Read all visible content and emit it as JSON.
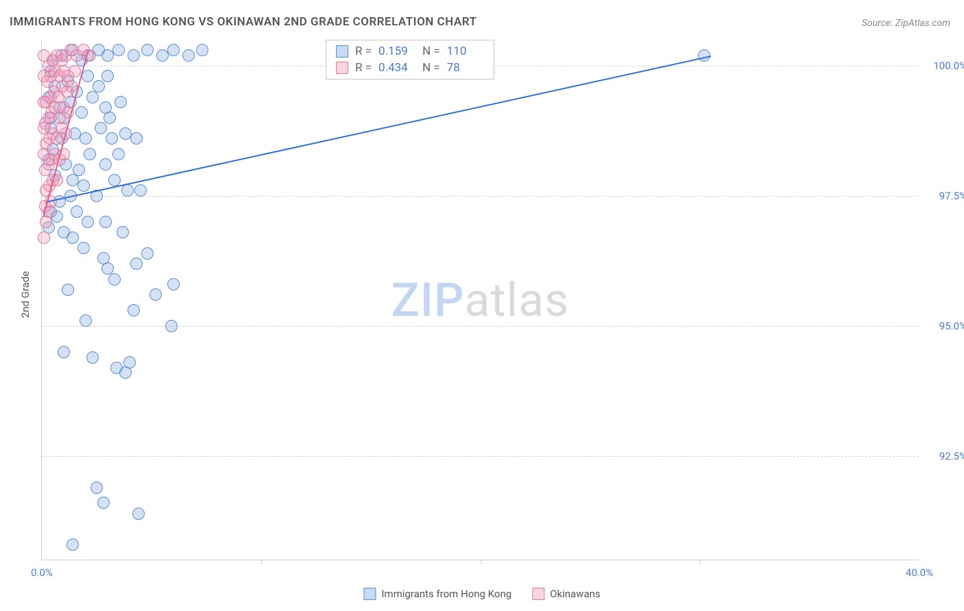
{
  "title": "IMMIGRANTS FROM HONG KONG VS OKINAWAN 2ND GRADE CORRELATION CHART",
  "source": "Source: ZipAtlas.com",
  "y_axis_label": "2nd Grade",
  "chart": {
    "type": "scatter",
    "xlim": [
      0,
      40
    ],
    "ylim": [
      90.5,
      100.5
    ],
    "xticks": [
      {
        "v": 0,
        "l": "0.0%"
      },
      {
        "v": 40,
        "l": "40.0%"
      }
    ],
    "xtick_marks": [
      10,
      20,
      30
    ],
    "yticks": [
      {
        "v": 92.5,
        "l": "92.5%"
      },
      {
        "v": 95.0,
        "l": "95.0%"
      },
      {
        "v": 97.5,
        "l": "97.5%"
      },
      {
        "v": 100.0,
        "l": "100.0%"
      }
    ],
    "series": [
      {
        "name": "Immigrants from Hong Kong",
        "color_class": "blue",
        "r": "0.159",
        "n": "110",
        "trend": {
          "x1": 0.2,
          "y1": 97.4,
          "x2": 30.5,
          "y2": 100.2
        },
        "points": [
          [
            2.5,
            91.9
          ],
          [
            2.8,
            91.6
          ],
          [
            4.4,
            91.4
          ],
          [
            1.4,
            90.8
          ],
          [
            3.4,
            94.2
          ],
          [
            4.0,
            94.3
          ],
          [
            3.8,
            94.1
          ],
          [
            2.3,
            94.4
          ],
          [
            1.0,
            94.5
          ],
          [
            5.9,
            95.0
          ],
          [
            5.2,
            95.6
          ],
          [
            4.2,
            95.3
          ],
          [
            6.0,
            95.8
          ],
          [
            3.0,
            96.1
          ],
          [
            3.3,
            95.9
          ],
          [
            2.0,
            95.1
          ],
          [
            1.2,
            95.7
          ],
          [
            4.3,
            96.2
          ],
          [
            4.8,
            96.4
          ],
          [
            2.8,
            96.3
          ],
          [
            1.0,
            96.8
          ],
          [
            1.4,
            96.7
          ],
          [
            2.1,
            97.0
          ],
          [
            2.9,
            97.0
          ],
          [
            3.7,
            96.8
          ],
          [
            0.8,
            97.4
          ],
          [
            1.3,
            97.5
          ],
          [
            1.9,
            97.7
          ],
          [
            2.5,
            97.5
          ],
          [
            3.3,
            97.8
          ],
          [
            3.9,
            97.6
          ],
          [
            4.5,
            97.6
          ],
          [
            0.6,
            97.9
          ],
          [
            1.1,
            98.1
          ],
          [
            1.7,
            98.0
          ],
          [
            2.2,
            98.3
          ],
          [
            2.9,
            98.1
          ],
          [
            3.5,
            98.3
          ],
          [
            0.5,
            98.4
          ],
          [
            0.9,
            98.6
          ],
          [
            1.5,
            98.7
          ],
          [
            2.0,
            98.6
          ],
          [
            2.7,
            98.8
          ],
          [
            3.2,
            98.6
          ],
          [
            3.8,
            98.7
          ],
          [
            4.3,
            98.6
          ],
          [
            0.4,
            99.0
          ],
          [
            0.8,
            99.2
          ],
          [
            1.0,
            99.0
          ],
          [
            1.3,
            99.3
          ],
          [
            1.8,
            99.1
          ],
          [
            2.3,
            99.4
          ],
          [
            2.9,
            99.2
          ],
          [
            3.1,
            99.0
          ],
          [
            3.6,
            99.3
          ],
          [
            0.6,
            99.6
          ],
          [
            1.2,
            99.7
          ],
          [
            1.6,
            99.5
          ],
          [
            2.1,
            99.8
          ],
          [
            2.6,
            99.6
          ],
          [
            3.0,
            99.8
          ],
          [
            0.5,
            100.1
          ],
          [
            0.9,
            100.2
          ],
          [
            1.4,
            100.3
          ],
          [
            1.8,
            100.1
          ],
          [
            2.1,
            100.2
          ],
          [
            2.6,
            100.3
          ],
          [
            3.0,
            100.2
          ],
          [
            3.5,
            100.3
          ],
          [
            4.2,
            100.2
          ],
          [
            4.8,
            100.3
          ],
          [
            5.5,
            100.2
          ],
          [
            6.0,
            100.3
          ],
          [
            6.7,
            100.2
          ],
          [
            7.3,
            100.3
          ],
          [
            30.2,
            100.2
          ],
          [
            0.3,
            96.9
          ],
          [
            0.4,
            97.2
          ],
          [
            0.3,
            98.2
          ],
          [
            0.4,
            98.8
          ],
          [
            0.3,
            99.4
          ],
          [
            0.4,
            99.9
          ],
          [
            0.7,
            97.1
          ],
          [
            1.6,
            97.2
          ],
          [
            1.4,
            97.8
          ],
          [
            1.9,
            96.5
          ]
        ]
      },
      {
        "name": "Okinawans",
        "color_class": "pink",
        "r": "0.434",
        "n": "78",
        "trend": {
          "x1": 0.05,
          "y1": 97.1,
          "x2": 2.1,
          "y2": 100.3
        },
        "points": [
          [
            0.1,
            96.7
          ],
          [
            0.2,
            97.0
          ],
          [
            0.3,
            97.2
          ],
          [
            0.15,
            97.3
          ],
          [
            0.4,
            97.4
          ],
          [
            0.2,
            97.6
          ],
          [
            0.35,
            97.7
          ],
          [
            0.5,
            97.8
          ],
          [
            0.7,
            97.8
          ],
          [
            0.15,
            98.0
          ],
          [
            0.3,
            98.1
          ],
          [
            0.45,
            98.2
          ],
          [
            0.6,
            98.3
          ],
          [
            0.8,
            98.2
          ],
          [
            1.0,
            98.3
          ],
          [
            0.2,
            98.5
          ],
          [
            0.35,
            98.6
          ],
          [
            0.5,
            98.7
          ],
          [
            0.7,
            98.6
          ],
          [
            0.9,
            98.8
          ],
          [
            1.1,
            98.7
          ],
          [
            0.15,
            98.9
          ],
          [
            0.3,
            99.0
          ],
          [
            0.45,
            99.1
          ],
          [
            0.6,
            99.2
          ],
          [
            0.8,
            99.0
          ],
          [
            1.0,
            99.2
          ],
          [
            1.2,
            99.1
          ],
          [
            0.2,
            99.3
          ],
          [
            0.4,
            99.4
          ],
          [
            0.55,
            99.5
          ],
          [
            0.75,
            99.4
          ],
          [
            0.95,
            99.6
          ],
          [
            1.15,
            99.5
          ],
          [
            1.35,
            99.6
          ],
          [
            0.25,
            99.7
          ],
          [
            0.4,
            99.8
          ],
          [
            0.6,
            99.9
          ],
          [
            0.8,
            99.8
          ],
          [
            1.0,
            99.9
          ],
          [
            1.2,
            99.8
          ],
          [
            1.5,
            99.9
          ],
          [
            0.3,
            100.0
          ],
          [
            0.5,
            100.1
          ],
          [
            0.7,
            100.2
          ],
          [
            0.9,
            100.1
          ],
          [
            1.1,
            100.2
          ],
          [
            1.3,
            100.3
          ],
          [
            1.6,
            100.2
          ],
          [
            1.9,
            100.3
          ],
          [
            2.2,
            100.2
          ],
          [
            0.1,
            98.3
          ],
          [
            0.1,
            98.8
          ],
          [
            0.1,
            99.3
          ],
          [
            0.1,
            99.8
          ],
          [
            0.1,
            100.2
          ]
        ]
      }
    ]
  },
  "watermark": {
    "zip": "ZIP",
    "atlas": "atlas"
  }
}
